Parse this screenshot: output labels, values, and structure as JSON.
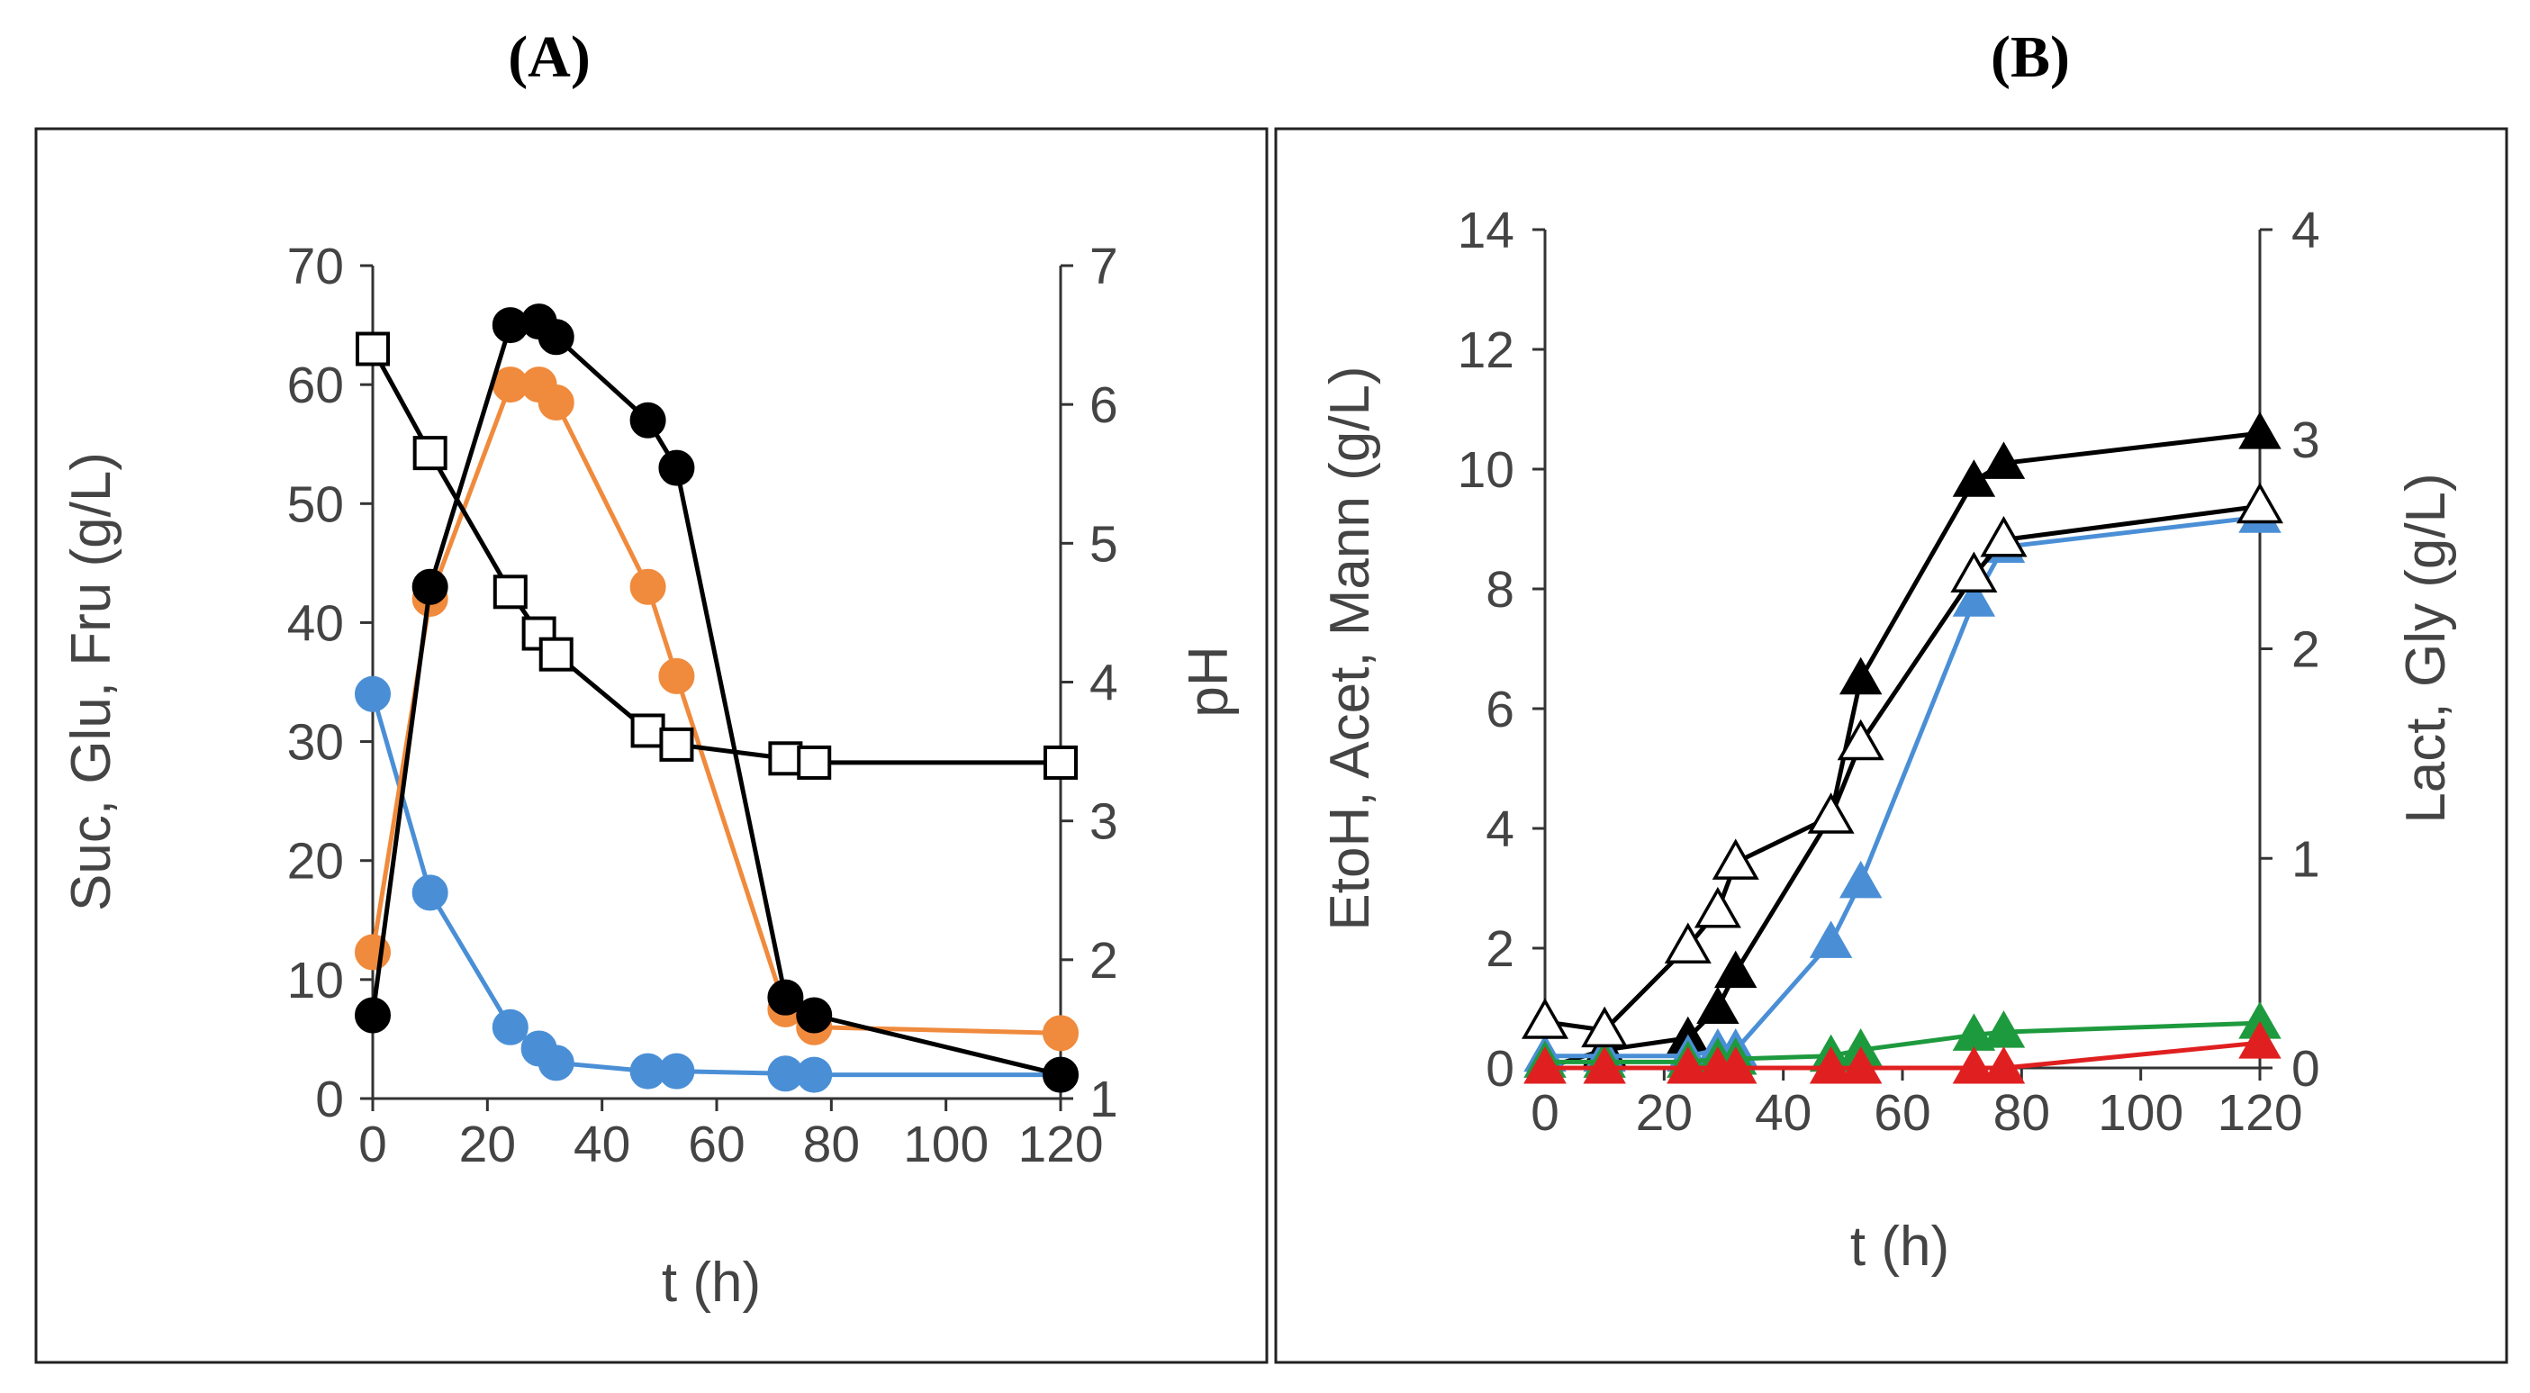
{
  "chart_data": [
    {
      "type": "line",
      "panel_label": "(A)",
      "xlabel": "t (h)",
      "ylabel": "Suc, Glu, Fru (g/L)",
      "y2label": "pH",
      "xlim": [
        0,
        120
      ],
      "ylim": [
        0,
        70
      ],
      "y2lim": [
        1,
        7
      ],
      "xticks": [
        0,
        20,
        40,
        60,
        80,
        100,
        120
      ],
      "yticks": [
        0,
        10,
        20,
        30,
        40,
        50,
        60,
        70
      ],
      "y2ticks": [
        1,
        2,
        3,
        4,
        5,
        6,
        7
      ],
      "series": [
        {
          "name": "Sucrose",
          "color": "#4a8fd6",
          "marker": "circle-filled",
          "axis": "left",
          "points": [
            [
              0,
              34
            ],
            [
              10,
              17.3
            ],
            [
              24,
              6
            ],
            [
              29,
              4.2
            ],
            [
              32,
              3
            ],
            [
              48,
              2.3
            ],
            [
              53,
              2.3
            ],
            [
              72,
              2.1
            ],
            [
              77,
              2
            ],
            [
              120,
              2
            ]
          ]
        },
        {
          "name": "Glucose",
          "color": "#f08a3c",
          "marker": "circle-filled",
          "axis": "left",
          "points": [
            [
              0,
              12.3
            ],
            [
              10,
              42
            ],
            [
              24,
              60
            ],
            [
              29,
              60
            ],
            [
              32,
              58.5
            ],
            [
              48,
              43
            ],
            [
              53,
              35.5
            ],
            [
              72,
              7.5
            ],
            [
              77,
              6
            ],
            [
              120,
              5.5
            ]
          ]
        },
        {
          "name": "Fructose",
          "color": "#000000",
          "marker": "circle-filled",
          "axis": "left",
          "points": [
            [
              0,
              7
            ],
            [
              10,
              43
            ],
            [
              24,
              65
            ],
            [
              29,
              65.3
            ],
            [
              32,
              64
            ],
            [
              48,
              57
            ],
            [
              53,
              53
            ],
            [
              72,
              8.5
            ],
            [
              77,
              7
            ],
            [
              120,
              2
            ]
          ]
        },
        {
          "name": "pH",
          "color": "#000000",
          "marker": "square-open",
          "axis": "right",
          "points": [
            [
              0,
              6.4
            ],
            [
              10,
              5.65
            ],
            [
              24,
              4.65
            ],
            [
              29,
              4.35
            ],
            [
              32,
              4.2
            ],
            [
              48,
              3.65
            ],
            [
              53,
              3.55
            ],
            [
              72,
              3.45
            ],
            [
              77,
              3.42
            ],
            [
              120,
              3.42
            ]
          ]
        }
      ]
    },
    {
      "type": "line",
      "panel_label": "(B)",
      "xlabel": "t (h)",
      "ylabel": "EtoH, Acet, Mann (g/L)",
      "y2label": "Lact, Gly (g/L)",
      "xlim": [
        0,
        120
      ],
      "ylim": [
        0,
        14
      ],
      "y2lim": [
        0,
        4
      ],
      "xticks": [
        0,
        20,
        40,
        60,
        80,
        100,
        120
      ],
      "yticks": [
        0,
        2,
        4,
        6,
        8,
        10,
        12,
        14
      ],
      "y2ticks": [
        0,
        1,
        2,
        3,
        4
      ],
      "series": [
        {
          "name": "Ethanol",
          "color": "#000000",
          "marker": "triangle-filled",
          "axis": "left",
          "points": [
            [
              0,
              0
            ],
            [
              10,
              0.3
            ],
            [
              24,
              0.5
            ],
            [
              29,
              1
            ],
            [
              32,
              1.6
            ],
            [
              48,
              4.2
            ],
            [
              53,
              6.5
            ],
            [
              72,
              9.8
            ],
            [
              77,
              10.1
            ],
            [
              120,
              10.6
            ]
          ]
        },
        {
          "name": "Mannitol",
          "color": "#4a8fd6",
          "marker": "triangle-filled",
          "axis": "left",
          "points": [
            [
              0,
              0.2
            ],
            [
              10,
              0.2
            ],
            [
              24,
              0.2
            ],
            [
              29,
              0.3
            ],
            [
              32,
              0.3
            ],
            [
              48,
              2.1
            ],
            [
              53,
              3.1
            ],
            [
              72,
              7.8
            ],
            [
              77,
              8.7
            ],
            [
              120,
              9.2
            ]
          ]
        },
        {
          "name": "Acetate",
          "color": "#1e9a3e",
          "marker": "triangle-filled",
          "axis": "left",
          "points": [
            [
              0,
              0.1
            ],
            [
              10,
              0.1
            ],
            [
              24,
              0.1
            ],
            [
              29,
              0.15
            ],
            [
              32,
              0.15
            ],
            [
              48,
              0.2
            ],
            [
              53,
              0.3
            ],
            [
              72,
              0.55
            ],
            [
              77,
              0.6
            ],
            [
              120,
              0.75
            ]
          ]
        },
        {
          "name": "Lactate",
          "color": "#e02020",
          "marker": "triangle-filled",
          "axis": "right",
          "points": [
            [
              0,
              0
            ],
            [
              10,
              0
            ],
            [
              24,
              0
            ],
            [
              29,
              0
            ],
            [
              32,
              0
            ],
            [
              48,
              0
            ],
            [
              53,
              0
            ],
            [
              72,
              0
            ],
            [
              77,
              0
            ],
            [
              120,
              0.12
            ]
          ]
        },
        {
          "name": "Glycerol",
          "color": "#000000",
          "marker": "triangle-open",
          "axis": "right",
          "points": [
            [
              0,
              0.22
            ],
            [
              10,
              0.18
            ],
            [
              24,
              0.58
            ],
            [
              29,
              0.75
            ],
            [
              32,
              0.98
            ],
            [
              48,
              1.2
            ],
            [
              53,
              1.55
            ],
            [
              72,
              2.35
            ],
            [
              77,
              2.52
            ],
            [
              120,
              2.68
            ]
          ]
        }
      ]
    }
  ]
}
